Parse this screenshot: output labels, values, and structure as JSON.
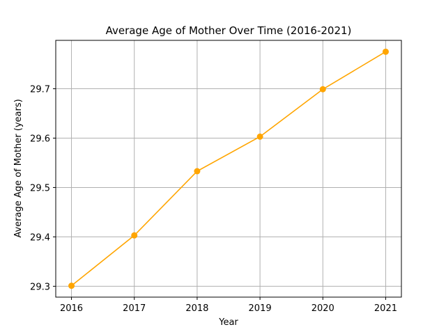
{
  "chart_data": {
    "type": "line",
    "title": "Average Age of Mother Over Time (2016-2021)",
    "xlabel": "Year",
    "ylabel": "Average Age of Mother (years)",
    "x": [
      2016,
      2017,
      2018,
      2019,
      2020,
      2021
    ],
    "series": [
      {
        "values": [
          29.301,
          29.403,
          29.533,
          29.603,
          29.699,
          29.775
        ],
        "color": "#ffa500",
        "marker": "circle"
      }
    ],
    "xticks": [
      "2016",
      "2017",
      "2018",
      "2019",
      "2020",
      "2021"
    ],
    "yticks": [
      "29.3",
      "29.4",
      "29.5",
      "29.6",
      "29.7"
    ],
    "ytick_values": [
      29.3,
      29.4,
      29.5,
      29.6,
      29.7
    ],
    "xlim": [
      2015.75,
      2021.25
    ],
    "ylim": [
      29.278,
      29.798
    ],
    "grid": true,
    "legend": false
  }
}
